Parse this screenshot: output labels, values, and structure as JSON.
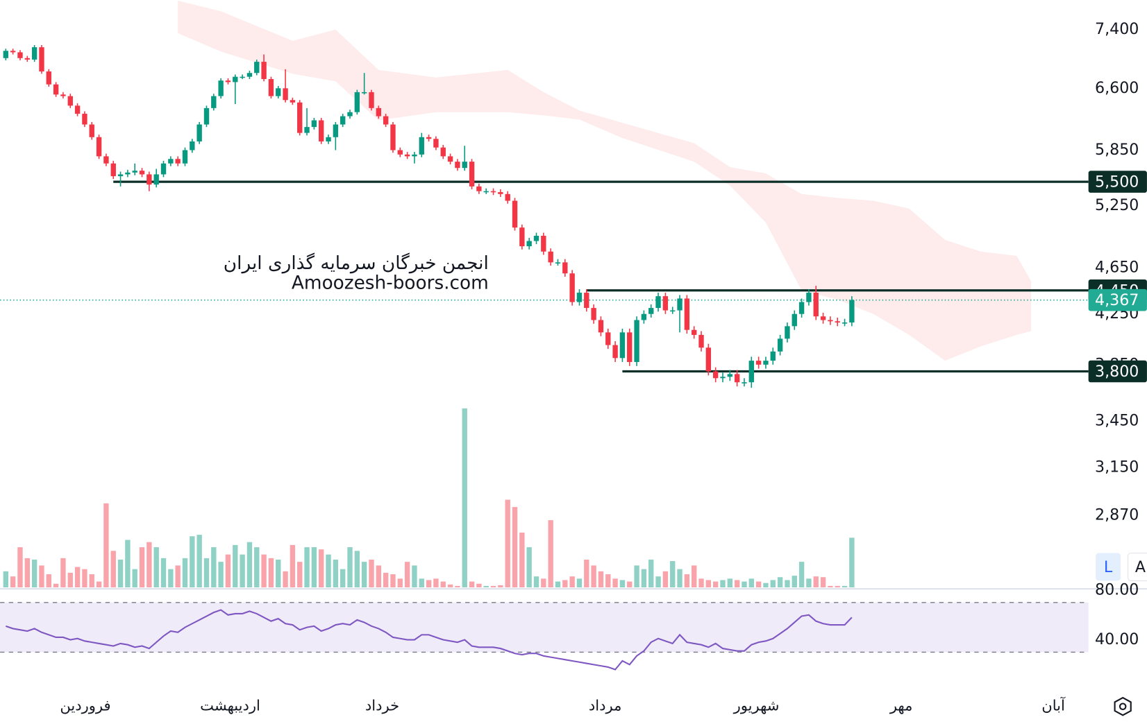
{
  "chart_data": {
    "type": "candlestick",
    "watermark": [
      "انجمن خبرگان سرمایه گذاری ایران",
      "Amoozesh-boors.com"
    ],
    "xlim": [
      -0.8,
      151
    ],
    "xticks": [
      {
        "value": 11.1,
        "label": "فروردین"
      },
      {
        "value": 31.3,
        "label": "اردیبهشت"
      },
      {
        "value": 52.5,
        "label": "خرداد"
      },
      {
        "value": 83.6,
        "label": "مرداد"
      },
      {
        "value": 104.7,
        "label": "شهریور"
      },
      {
        "value": 124.9,
        "label": "مهر"
      },
      {
        "value": 146.1,
        "label": "آبان"
      }
    ],
    "ylim": [
      2490,
      7840
    ],
    "log_scale": true,
    "yticks": [
      {
        "value": 7400,
        "label": "7,400"
      },
      {
        "value": 6600,
        "label": "6,600"
      },
      {
        "value": 5850,
        "label": "5,850"
      },
      {
        "value": 5250,
        "label": "5,250"
      },
      {
        "value": 4650,
        "label": "4,650"
      },
      {
        "value": 4250,
        "label": "4,250"
      },
      {
        "value": 3850,
        "label": "3,850"
      },
      {
        "value": 3450,
        "label": "3,450"
      },
      {
        "value": 3150,
        "label": "3,150"
      },
      {
        "value": 2870,
        "label": "2,870"
      }
    ],
    "up_color": "#089981",
    "down_color": "#f23645",
    "series": {
      "open": [
        7000,
        7100,
        7080,
        7000,
        6980,
        7150,
        6820,
        6650,
        6520,
        6500,
        6380,
        6280,
        6150,
        6000,
        5780,
        5700,
        5560,
        5580,
        5600,
        5620,
        5580,
        5470,
        5580,
        5700,
        5750,
        5700,
        5850,
        5950,
        6150,
        6350,
        6500,
        6700,
        6680,
        6750,
        6750,
        6800,
        6950,
        6720,
        6500,
        6600,
        6450,
        6420,
        6050,
        6120,
        6200,
        5950,
        6000,
        6150,
        6250,
        6300,
        6550,
        6550,
        6350,
        6250,
        6150,
        5850,
        5800,
        5780,
        5800,
        6000,
        5980,
        5880,
        5780,
        5720,
        5650,
        5720,
        5450,
        5400,
        5400,
        5390,
        5370,
        5300,
        5030,
        4850,
        4900,
        4950,
        4800,
        4700,
        4700,
        4600,
        4350,
        4430,
        4300,
        4200,
        4100,
        4000,
        3900,
        4100,
        3870,
        4200,
        4250,
        4300,
        4400,
        4280,
        4280,
        4380,
        4120,
        4080,
        3980,
        3800,
        3750,
        3760,
        3780,
        3720,
        3720,
        3880,
        3850,
        3880,
        3950,
        4050,
        4150,
        4250,
        4350,
        4430,
        4230,
        4200,
        4190,
        4180,
        4180
      ],
      "high": [
        7130,
        7130,
        7110,
        7030,
        7180,
        7180,
        6850,
        6680,
        6550,
        6530,
        6410,
        6310,
        6180,
        6030,
        5810,
        5730,
        5610,
        5630,
        5700,
        5650,
        5610,
        5640,
        5730,
        5780,
        5780,
        5880,
        5980,
        6180,
        6380,
        6530,
        6730,
        6730,
        6780,
        6780,
        6830,
        6980,
        7050,
        6750,
        6630,
        6850,
        6480,
        6450,
        6350,
        6230,
        6230,
        6030,
        6180,
        6280,
        6330,
        6580,
        6800,
        6580,
        6380,
        6280,
        6180,
        5880,
        5830,
        5830,
        6050,
        6030,
        6010,
        5910,
        5810,
        5750,
        5900,
        5750,
        5480,
        5430,
        5430,
        5420,
        5400,
        5330,
        5060,
        4930,
        4980,
        4980,
        4830,
        4730,
        4730,
        4630,
        4460,
        4460,
        4330,
        4230,
        4130,
        4030,
        4130,
        4130,
        4230,
        4280,
        4330,
        4430,
        4430,
        4310,
        4410,
        4410,
        4150,
        4110,
        4010,
        3830,
        3790,
        3810,
        3810,
        3750,
        3910,
        3910,
        3910,
        3980,
        4080,
        4180,
        4280,
        4380,
        4460,
        4490,
        4260,
        4230,
        4220,
        4210,
        4400
      ],
      "low": [
        6970,
        7050,
        6970,
        6950,
        6950,
        6790,
        6620,
        6490,
        6470,
        6350,
        6250,
        6120,
        5970,
        5750,
        5670,
        5530,
        5450,
        5550,
        5570,
        5550,
        5400,
        5440,
        5550,
        5670,
        5670,
        5670,
        5820,
        5920,
        6120,
        6320,
        6470,
        6650,
        6400,
        6720,
        6720,
        6770,
        6690,
        6470,
        6470,
        6420,
        6390,
        6020,
        6020,
        6090,
        5920,
        5920,
        5850,
        6120,
        6220,
        6270,
        6520,
        6320,
        6220,
        6120,
        5820,
        5770,
        5750,
        5700,
        5770,
        5950,
        5850,
        5750,
        5690,
        5620,
        5620,
        5420,
        5370,
        5370,
        5360,
        5340,
        5270,
        5000,
        4820,
        4820,
        4870,
        4770,
        4670,
        4670,
        4570,
        4320,
        4320,
        4270,
        4170,
        4070,
        3970,
        3870,
        3870,
        3840,
        3840,
        4170,
        4220,
        4270,
        4250,
        4250,
        4100,
        4090,
        4050,
        3950,
        3770,
        3720,
        3720,
        3730,
        3690,
        3690,
        3680,
        3820,
        3820,
        3850,
        3920,
        4020,
        4120,
        4220,
        4320,
        4200,
        4170,
        4160,
        4150,
        4150,
        4150
      ],
      "close": [
        7100,
        7080,
        7000,
        6980,
        7150,
        6820,
        6650,
        6520,
        6500,
        6380,
        6280,
        6150,
        6000,
        5780,
        5700,
        5560,
        5580,
        5600,
        5620,
        5580,
        5470,
        5580,
        5700,
        5750,
        5700,
        5850,
        5950,
        6150,
        6350,
        6500,
        6700,
        6680,
        6750,
        6750,
        6800,
        6950,
        6720,
        6500,
        6600,
        6450,
        6420,
        6050,
        6120,
        6200,
        5950,
        6000,
        6150,
        6250,
        6300,
        6550,
        6550,
        6350,
        6250,
        6150,
        5850,
        5800,
        5780,
        5800,
        6000,
        5980,
        5880,
        5780,
        5720,
        5650,
        5720,
        5450,
        5400,
        5400,
        5390,
        5370,
        5300,
        5030,
        4850,
        4900,
        4950,
        4800,
        4700,
        4700,
        4600,
        4350,
        4430,
        4300,
        4200,
        4100,
        4000,
        3900,
        4100,
        3870,
        4200,
        4250,
        4300,
        4400,
        4280,
        4280,
        4380,
        4120,
        4080,
        3980,
        3800,
        3750,
        3760,
        3780,
        3720,
        3720,
        3880,
        3850,
        3880,
        3950,
        4050,
        4150,
        4250,
        4350,
        4430,
        4230,
        4200,
        4190,
        4180,
        4180,
        4367
      ]
    },
    "volume": {
      "vlim": [
        0,
        250
      ],
      "values": [
        22,
        15,
        55,
        40,
        38,
        30,
        18,
        5,
        40,
        20,
        28,
        25,
        18,
        8,
        115,
        50,
        38,
        65,
        25,
        55,
        62,
        55,
        40,
        25,
        30,
        40,
        70,
        72,
        40,
        55,
        35,
        45,
        58,
        45,
        62,
        55,
        45,
        40,
        38,
        22,
        58,
        35,
        55,
        55,
        52,
        45,
        38,
        25,
        55,
        50,
        35,
        38,
        30,
        20,
        18,
        12,
        35,
        30,
        12,
        10,
        12,
        8,
        4,
        2,
        245,
        8,
        5,
        2,
        2,
        3,
        120,
        110,
        75,
        55,
        15,
        12,
        92,
        8,
        10,
        15,
        12,
        38,
        30,
        22,
        18,
        12,
        10,
        8,
        30,
        25,
        38,
        15,
        22,
        36,
        25,
        18,
        30,
        12,
        10,
        8,
        10,
        12,
        10,
        8,
        12,
        8,
        6,
        10,
        14,
        10,
        16,
        35,
        12,
        15,
        14,
        2,
        2,
        2,
        68
      ]
    },
    "cloud": {
      "color": "#f23645",
      "x": [
        24,
        30,
        40,
        46,
        52,
        60,
        70,
        75,
        80,
        86,
        96,
        101,
        106,
        111,
        116,
        121,
        126,
        131,
        136,
        141,
        143
      ],
      "upper": [
        7830,
        7670,
        7240,
        7400,
        6840,
        6740,
        6840,
        6550,
        6320,
        6170,
        5930,
        5660,
        5590,
        5370,
        5330,
        5300,
        5220,
        4910,
        4800,
        4760,
        4530
      ],
      "lower": [
        7350,
        7090,
        6790,
        6690,
        6200,
        6300,
        6300,
        6260,
        6210,
        5990,
        5720,
        5460,
        5080,
        4450,
        4370,
        4250,
        4080,
        3880,
        3990,
        4080,
        4110
      ]
    },
    "levels": [
      {
        "value": 5500,
        "label": "5,500",
        "from": 15
      },
      {
        "value": 4450,
        "label": "4,450",
        "from": 81
      },
      {
        "value": 3800,
        "label": "3,800",
        "from": 86
      }
    ],
    "level_color": "#0b2e26",
    "last_price": {
      "value": 4367,
      "label": "4,367",
      "color": "#22ab94"
    },
    "rsi": {
      "color": "#7e57c2",
      "ylim": [
        0,
        81
      ],
      "yticks": [
        {
          "value": 80,
          "label": "80.00"
        },
        {
          "value": 40,
          "label": "40.00"
        }
      ],
      "bands": [
        30,
        70
      ],
      "values": [
        51,
        49,
        48,
        47,
        49,
        46,
        44,
        42,
        42,
        40,
        41,
        39,
        38,
        37,
        36,
        35,
        37,
        36,
        34,
        35,
        33,
        38,
        43,
        47,
        46,
        50,
        53,
        56,
        59,
        62,
        64,
        60,
        61,
        61,
        63,
        61,
        58,
        55,
        57,
        53,
        52,
        48,
        50,
        51,
        47,
        49,
        52,
        53,
        52,
        56,
        54,
        51,
        49,
        46,
        42,
        41,
        40,
        40,
        44,
        44,
        42,
        40,
        39,
        38,
        40,
        35,
        34,
        34,
        34,
        33,
        31,
        29,
        28,
        29,
        29,
        27,
        26,
        25,
        24,
        23,
        22,
        21,
        20,
        19,
        18,
        16,
        23,
        20,
        27,
        31,
        38,
        41,
        39,
        37,
        44,
        38,
        37,
        36,
        34,
        37,
        33,
        32,
        31,
        31,
        36,
        38,
        39,
        41,
        45,
        49,
        54,
        59,
        60,
        55,
        53,
        52,
        52,
        52,
        58
      ]
    },
    "buttons": [
      "L",
      "A"
    ]
  }
}
